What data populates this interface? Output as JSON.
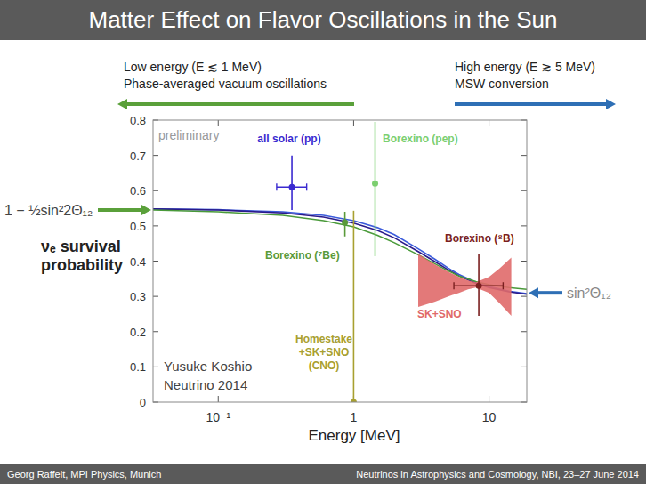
{
  "chart_data": {
    "type": "line",
    "title": "Matter Effect on Flavor Oscillations in the Sun",
    "x_label": "Energy [MeV]",
    "y_label": "νₑ survival\nprobability",
    "log": "x",
    "grid": false,
    "xlim": [
      0.033,
      19
    ],
    "ylim": [
      0,
      0.8
    ],
    "xticks": [
      {
        "value": 0.1,
        "label": "10⁻¹"
      },
      1,
      10
    ],
    "yticks": [
      0,
      0.1,
      0.2,
      0.3,
      0.4,
      0.5,
      0.6,
      0.7,
      0.8
    ],
    "series": [
      {
        "type": "line",
        "color": "#3b5bdb",
        "line_style": "solid",
        "x": [
          0.033,
          0.1,
          0.3,
          0.6,
          1,
          1.5,
          2,
          3,
          4,
          5,
          6,
          8,
          10,
          14,
          19
        ],
        "values": [
          0.548,
          0.546,
          0.54,
          0.53,
          0.515,
          0.495,
          0.475,
          0.435,
          0.405,
          0.38,
          0.362,
          0.34,
          0.328,
          0.315,
          0.308
        ]
      },
      {
        "type": "line",
        "color": "#2a1a8a",
        "line_style": "solid",
        "x": [
          0.033,
          0.1,
          0.3,
          0.6,
          1,
          1.5,
          2,
          3,
          4,
          5,
          6,
          8,
          10,
          14,
          19
        ],
        "values": [
          0.548,
          0.545,
          0.537,
          0.525,
          0.508,
          0.487,
          0.466,
          0.427,
          0.398,
          0.375,
          0.358,
          0.337,
          0.325,
          0.313,
          0.306
        ]
      },
      {
        "type": "line",
        "color": "#4a9a3a",
        "line_style": "solid",
        "x": [
          0.033,
          0.1,
          0.3,
          0.6,
          1,
          1.5,
          2,
          3,
          4,
          5,
          6,
          8,
          10,
          14,
          19
        ],
        "values": [
          0.545,
          0.54,
          0.53,
          0.515,
          0.497,
          0.473,
          0.452,
          0.418,
          0.392,
          0.372,
          0.358,
          0.342,
          0.333,
          0.325,
          0.32
        ]
      },
      {
        "name": "SK+SNO",
        "type": "band",
        "color": "#e06a6a",
        "x": [
          3,
          4,
          5,
          6,
          7,
          8,
          10,
          12,
          14.6
        ],
        "lower": [
          0.27,
          0.285,
          0.3,
          0.31,
          0.32,
          0.325,
          0.31,
          0.28,
          0.245
        ],
        "upper": [
          0.42,
          0.39,
          0.37,
          0.355,
          0.345,
          0.34,
          0.355,
          0.38,
          0.41
        ]
      },
      {
        "name": "all solar (pp)",
        "type": "scatter",
        "marker": "circle",
        "color": "#3a2ad0",
        "x": [
          0.35
        ],
        "values": [
          0.61
        ],
        "y_low": [
          0.545
        ],
        "y_high": [
          0.7
        ],
        "x_low": [
          0.27
        ],
        "x_high": [
          0.45
        ]
      },
      {
        "name": "Borexino (⁷Be)",
        "type": "scatter",
        "marker": "circle",
        "color": "#5a9a3a",
        "x": [
          0.862
        ],
        "values": [
          0.51
        ],
        "y_low": [
          0.47
        ],
        "y_high": [
          0.54
        ]
      },
      {
        "name": "Homestake\n+SK+SNO\n(CNO)",
        "type": "scatter",
        "marker": "circle",
        "color": "#a8a030",
        "x": [
          1.0
        ],
        "values": [
          0
        ],
        "y_low": [
          0
        ],
        "y_high": [
          0.543
        ]
      },
      {
        "name": "Borexino (pep)",
        "type": "scatter",
        "marker": "circle",
        "color": "#7ccf6f",
        "x": [
          1.44
        ],
        "values": [
          0.62
        ],
        "y_low": [
          0.414
        ],
        "y_high": [
          0.795
        ]
      },
      {
        "name": "Borexino (⁸B)",
        "type": "scatter",
        "marker": "circle",
        "color": "#7a1f1f",
        "x": [
          8.4
        ],
        "values": [
          0.33
        ],
        "y_low": [
          0.245
        ],
        "y_high": [
          0.42
        ],
        "x_low": [
          5.5
        ],
        "x_high": [
          12.7
        ]
      }
    ],
    "annotations": [
      {
        "text": "preliminary"
      },
      {
        "text": "Yusuke Koshio\nNeutrino 2014"
      },
      {
        "text": "Low energy (E ≲ 1 MeV)\nPhase-averaged vacuum oscillations"
      },
      {
        "text": "High energy (E ≳ 5 MeV)\nMSW conversion"
      },
      {
        "text": "1 − ½sin²2Θ₁₂",
        "y": 0.545
      },
      {
        "text": "sin²Θ₁₂",
        "y": 0.31
      }
    ]
  },
  "slide": {
    "footer_left": "Georg Raffelt, MPI Physics, Munich",
    "footer_right": "Neutrinos in Astrophysics and Cosmology, NBI, 23–27 June 2014"
  }
}
